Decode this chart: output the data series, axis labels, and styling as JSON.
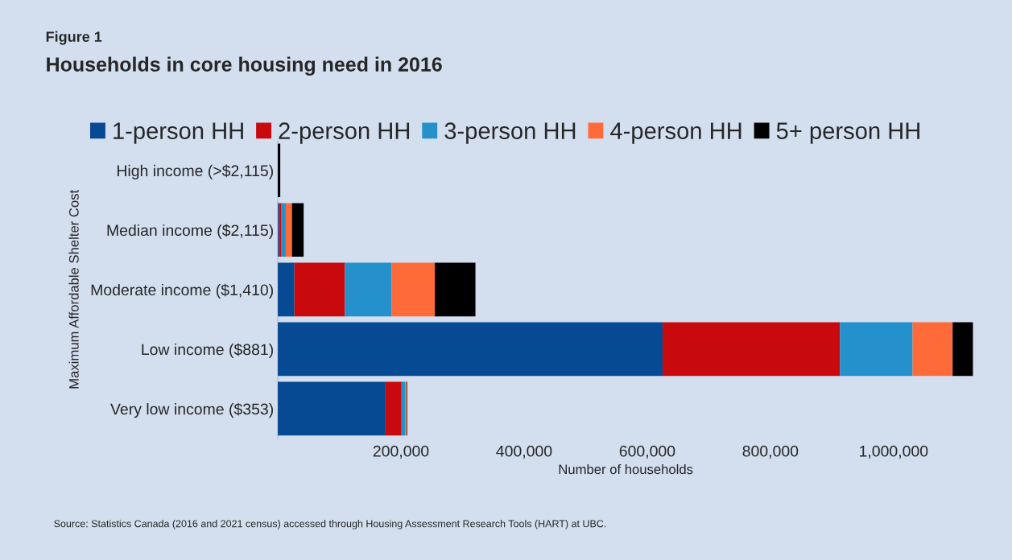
{
  "chart_data": {
    "type": "bar",
    "orientation": "horizontal",
    "stacked": true,
    "subtitle": "Figure 1",
    "title": "Households in core housing need in 2016",
    "xlabel": "Number of households",
    "ylabel": "Maximum Affordable Shelter Cost",
    "categories": [
      "High income (>$2,115)",
      "Median income ($2,115)",
      "Moderate income ($1,410)",
      "Low income ($881)",
      "Very low income ($353)"
    ],
    "series": [
      {
        "name": "1-person HH",
        "color": "#064a94",
        "values": [
          0,
          2000,
          27000,
          625000,
          175000
        ]
      },
      {
        "name": "2-person HH",
        "color": "#c80a0e",
        "values": [
          0,
          4000,
          82000,
          288000,
          26000
        ]
      },
      {
        "name": "3-person HH",
        "color": "#2591cc",
        "values": [
          0,
          7000,
          76000,
          118000,
          6000
        ]
      },
      {
        "name": "4-person HH",
        "color": "#ff6b38",
        "values": [
          0,
          10000,
          70000,
          65000,
          2000
        ]
      },
      {
        "name": "5+ person HH",
        "color": "#000000",
        "values": [
          4000,
          19000,
          66000,
          33000,
          1000
        ]
      }
    ],
    "xlim": [
      0,
      1130000
    ],
    "xticks": [
      {
        "value": 200000,
        "label": "200,000"
      },
      {
        "value": 400000,
        "label": "400,000"
      },
      {
        "value": 600000,
        "label": "600,000"
      },
      {
        "value": 800000,
        "label": "800,000"
      },
      {
        "value": 1000000,
        "label": "1,000,000"
      }
    ],
    "grid": false,
    "legend": "top",
    "annotations": [
      "Source: Statistics Canada (2016 and 2021 census) accessed through Housing Assessment Research Tools (HART) at UBC."
    ]
  }
}
